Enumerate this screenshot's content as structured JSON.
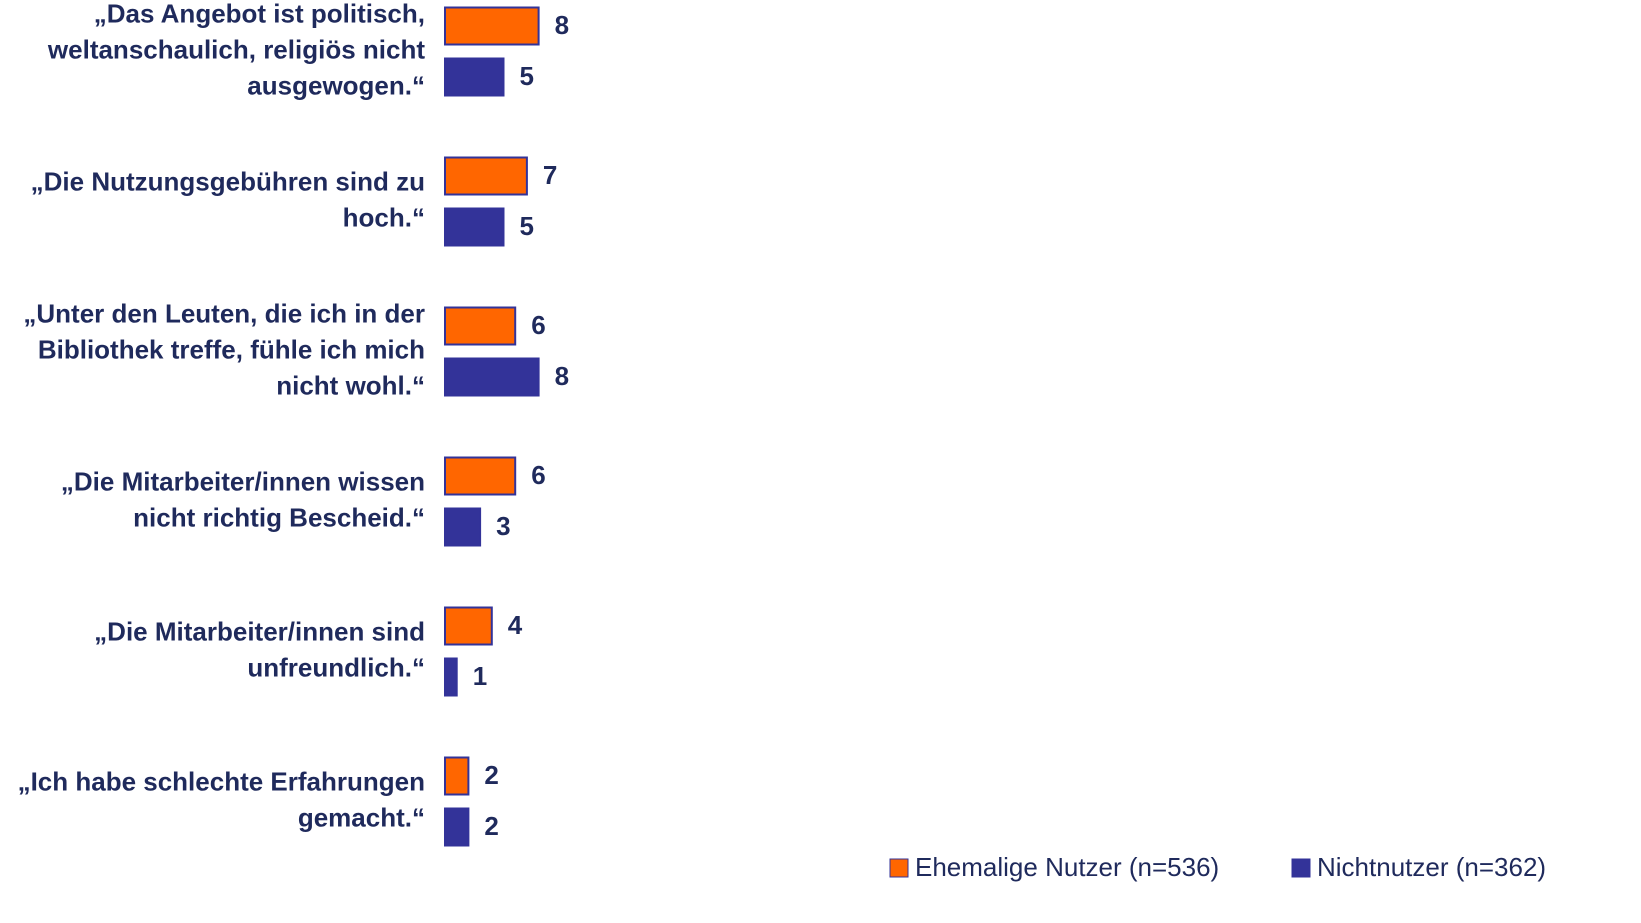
{
  "chart_data": {
    "type": "bar",
    "orientation": "horizontal",
    "categories": [
      [
        "„Das Angebot ist politisch,",
        "weltanschaulich, religiös nicht",
        "ausgewogen.“"
      ],
      [
        "„Die Nutzungsgebühren sind zu",
        "hoch.“"
      ],
      [
        "„Unter den Leuten, die ich in der",
        "Bibliothek treffe, fühle ich mich",
        "nicht wohl.“"
      ],
      [
        "„Die Mitarbeiter/innen wissen",
        "nicht richtig Bescheid.“"
      ],
      [
        "„Die Mitarbeiter/innen sind",
        "unfreundlich.“"
      ],
      [
        "„Ich habe schlechte Erfahrungen",
        "gemacht.“"
      ]
    ],
    "series": [
      {
        "name": "Ehemalige Nutzer (n=536)",
        "color": "#ff6600",
        "values": [
          8,
          7,
          6,
          6,
          4,
          2
        ]
      },
      {
        "name": "Nichtnutzer (n=362)",
        "color": "#333399",
        "values": [
          5,
          5,
          8,
          3,
          1,
          2
        ]
      }
    ],
    "legend": "bottom-right"
  }
}
